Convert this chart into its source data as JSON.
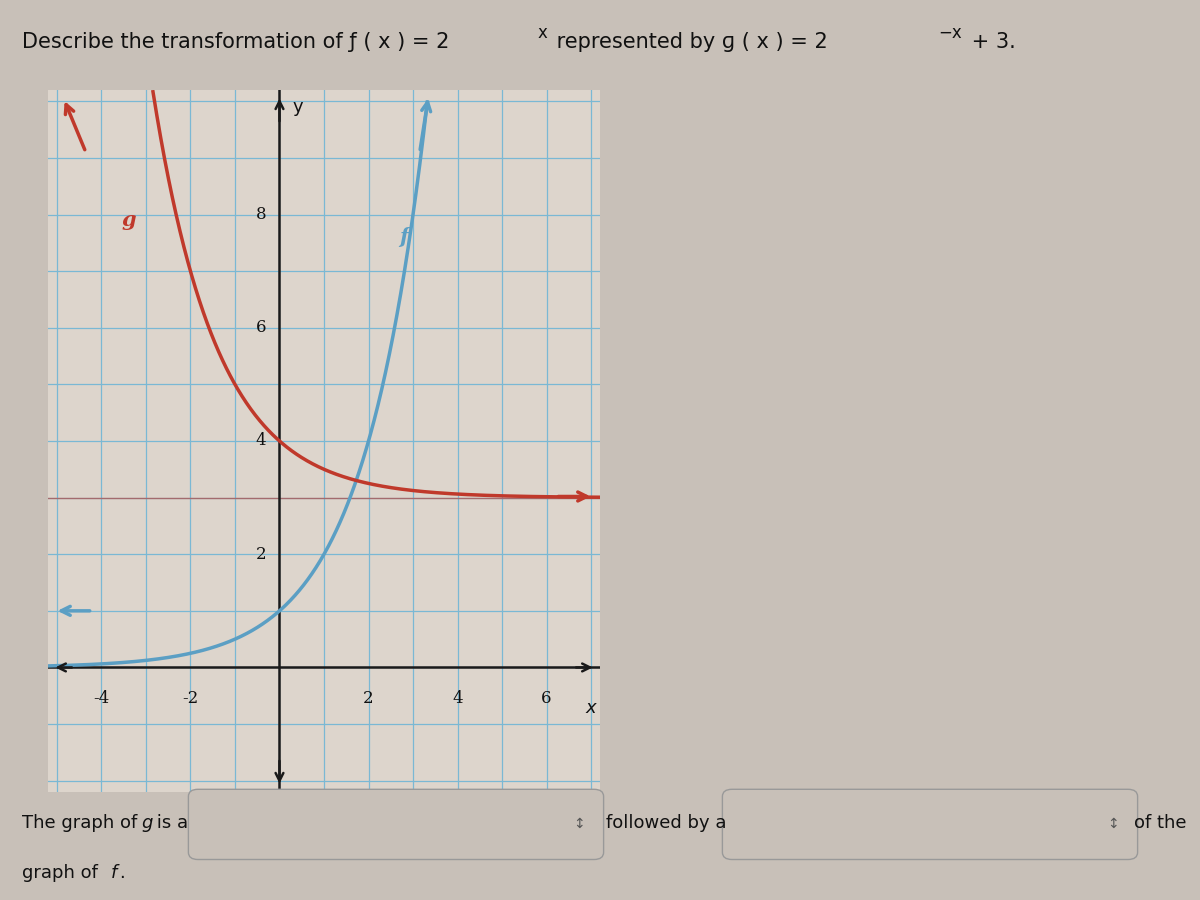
{
  "title_part1": "Describe the transformation of ",
  "title_math1": "f (x) = 2",
  "title_sup1": "x",
  "title_part2": " represented by ",
  "title_math2": "g (x) = 2",
  "title_sup2": "−x",
  "title_part3": " + 3.",
  "title_fontsize": 15,
  "background_color": "#c8c0b8",
  "plot_bg_color": "#ddd5cc",
  "grid_color": "#7ab8d4",
  "axis_color": "#1a1a1a",
  "f_color": "#5b9fc4",
  "g_color": "#c0392b",
  "xlabel": "x",
  "ylabel": "y",
  "xlim": [
    -5.2,
    7.2
  ],
  "ylim": [
    -2.2,
    10.2
  ],
  "xticks": [
    -4,
    -2,
    2,
    4,
    6
  ],
  "yticks": [
    2,
    4,
    6,
    8
  ],
  "f_label": "f",
  "g_label": "g"
}
